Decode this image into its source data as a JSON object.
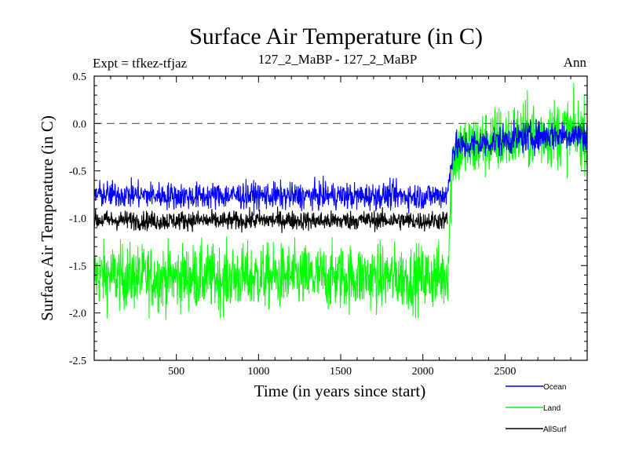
{
  "chart_data": {
    "type": "line",
    "title": "Surface Air Temperature (in C)",
    "left_label": "Expt = tfkez-tfjaz",
    "center_label": "127_2_MaBP - 127_2_MaBP",
    "right_label": "Ann",
    "xlabel": "Time (in years since start)",
    "ylabel": "Surface Air Temperature (in C)",
    "xlim": [
      0,
      3000
    ],
    "ylim": [
      -2.5,
      0.5
    ],
    "x_ticks": [
      500,
      1000,
      1500,
      2000,
      2500
    ],
    "x_tick_labels": [
      "500",
      "1000",
      "1500",
      "2000",
      "2500"
    ],
    "y_ticks": [
      0.5,
      0.0,
      -0.5,
      -1.0,
      -1.5,
      -2.0,
      -2.5
    ],
    "y_tick_labels": [
      "0.5",
      "0.0",
      "-0.5",
      "-1.0",
      "-1.5",
      "-2.0",
      "-2.5"
    ],
    "reference_line": {
      "y": 0.0,
      "style": "dashed"
    },
    "grid": false,
    "legend_position": "bottom-right",
    "series": [
      {
        "name": "Ocean",
        "color": "#0000ff",
        "x": [
          0,
          200,
          400,
          600,
          800,
          1000,
          1200,
          1400,
          1600,
          1800,
          2000,
          2150,
          2180,
          2200,
          2400,
          2600,
          2800,
          3000
        ],
        "y": [
          -0.75,
          -0.75,
          -0.76,
          -0.77,
          -0.76,
          -0.76,
          -0.77,
          -0.76,
          -0.77,
          -0.76,
          -0.77,
          -0.75,
          -0.3,
          -0.25,
          -0.2,
          -0.15,
          -0.12,
          -0.12
        ]
      },
      {
        "name": "Land",
        "color": "#00ff00",
        "x": [
          0,
          200,
          400,
          600,
          800,
          1000,
          1200,
          1400,
          1600,
          1800,
          2000,
          2150,
          2180,
          2200,
          2400,
          2600,
          2800,
          3000
        ],
        "y": [
          -1.6,
          -1.62,
          -1.63,
          -1.62,
          -1.63,
          -1.62,
          -1.62,
          -1.63,
          -1.62,
          -1.62,
          -1.63,
          -1.6,
          -0.4,
          -0.3,
          -0.2,
          -0.12,
          -0.1,
          -0.1
        ]
      },
      {
        "name": "AllSurf",
        "color": "#000000",
        "x": [
          0,
          200,
          400,
          600,
          800,
          1000,
          1200,
          1400,
          1600,
          1800,
          2000,
          2150
        ],
        "y": [
          -1.02,
          -1.02,
          -1.03,
          -1.02,
          -1.03,
          -1.02,
          -1.02,
          -1.03,
          -1.02,
          -1.02,
          -1.03,
          -1.02
        ]
      }
    ]
  }
}
